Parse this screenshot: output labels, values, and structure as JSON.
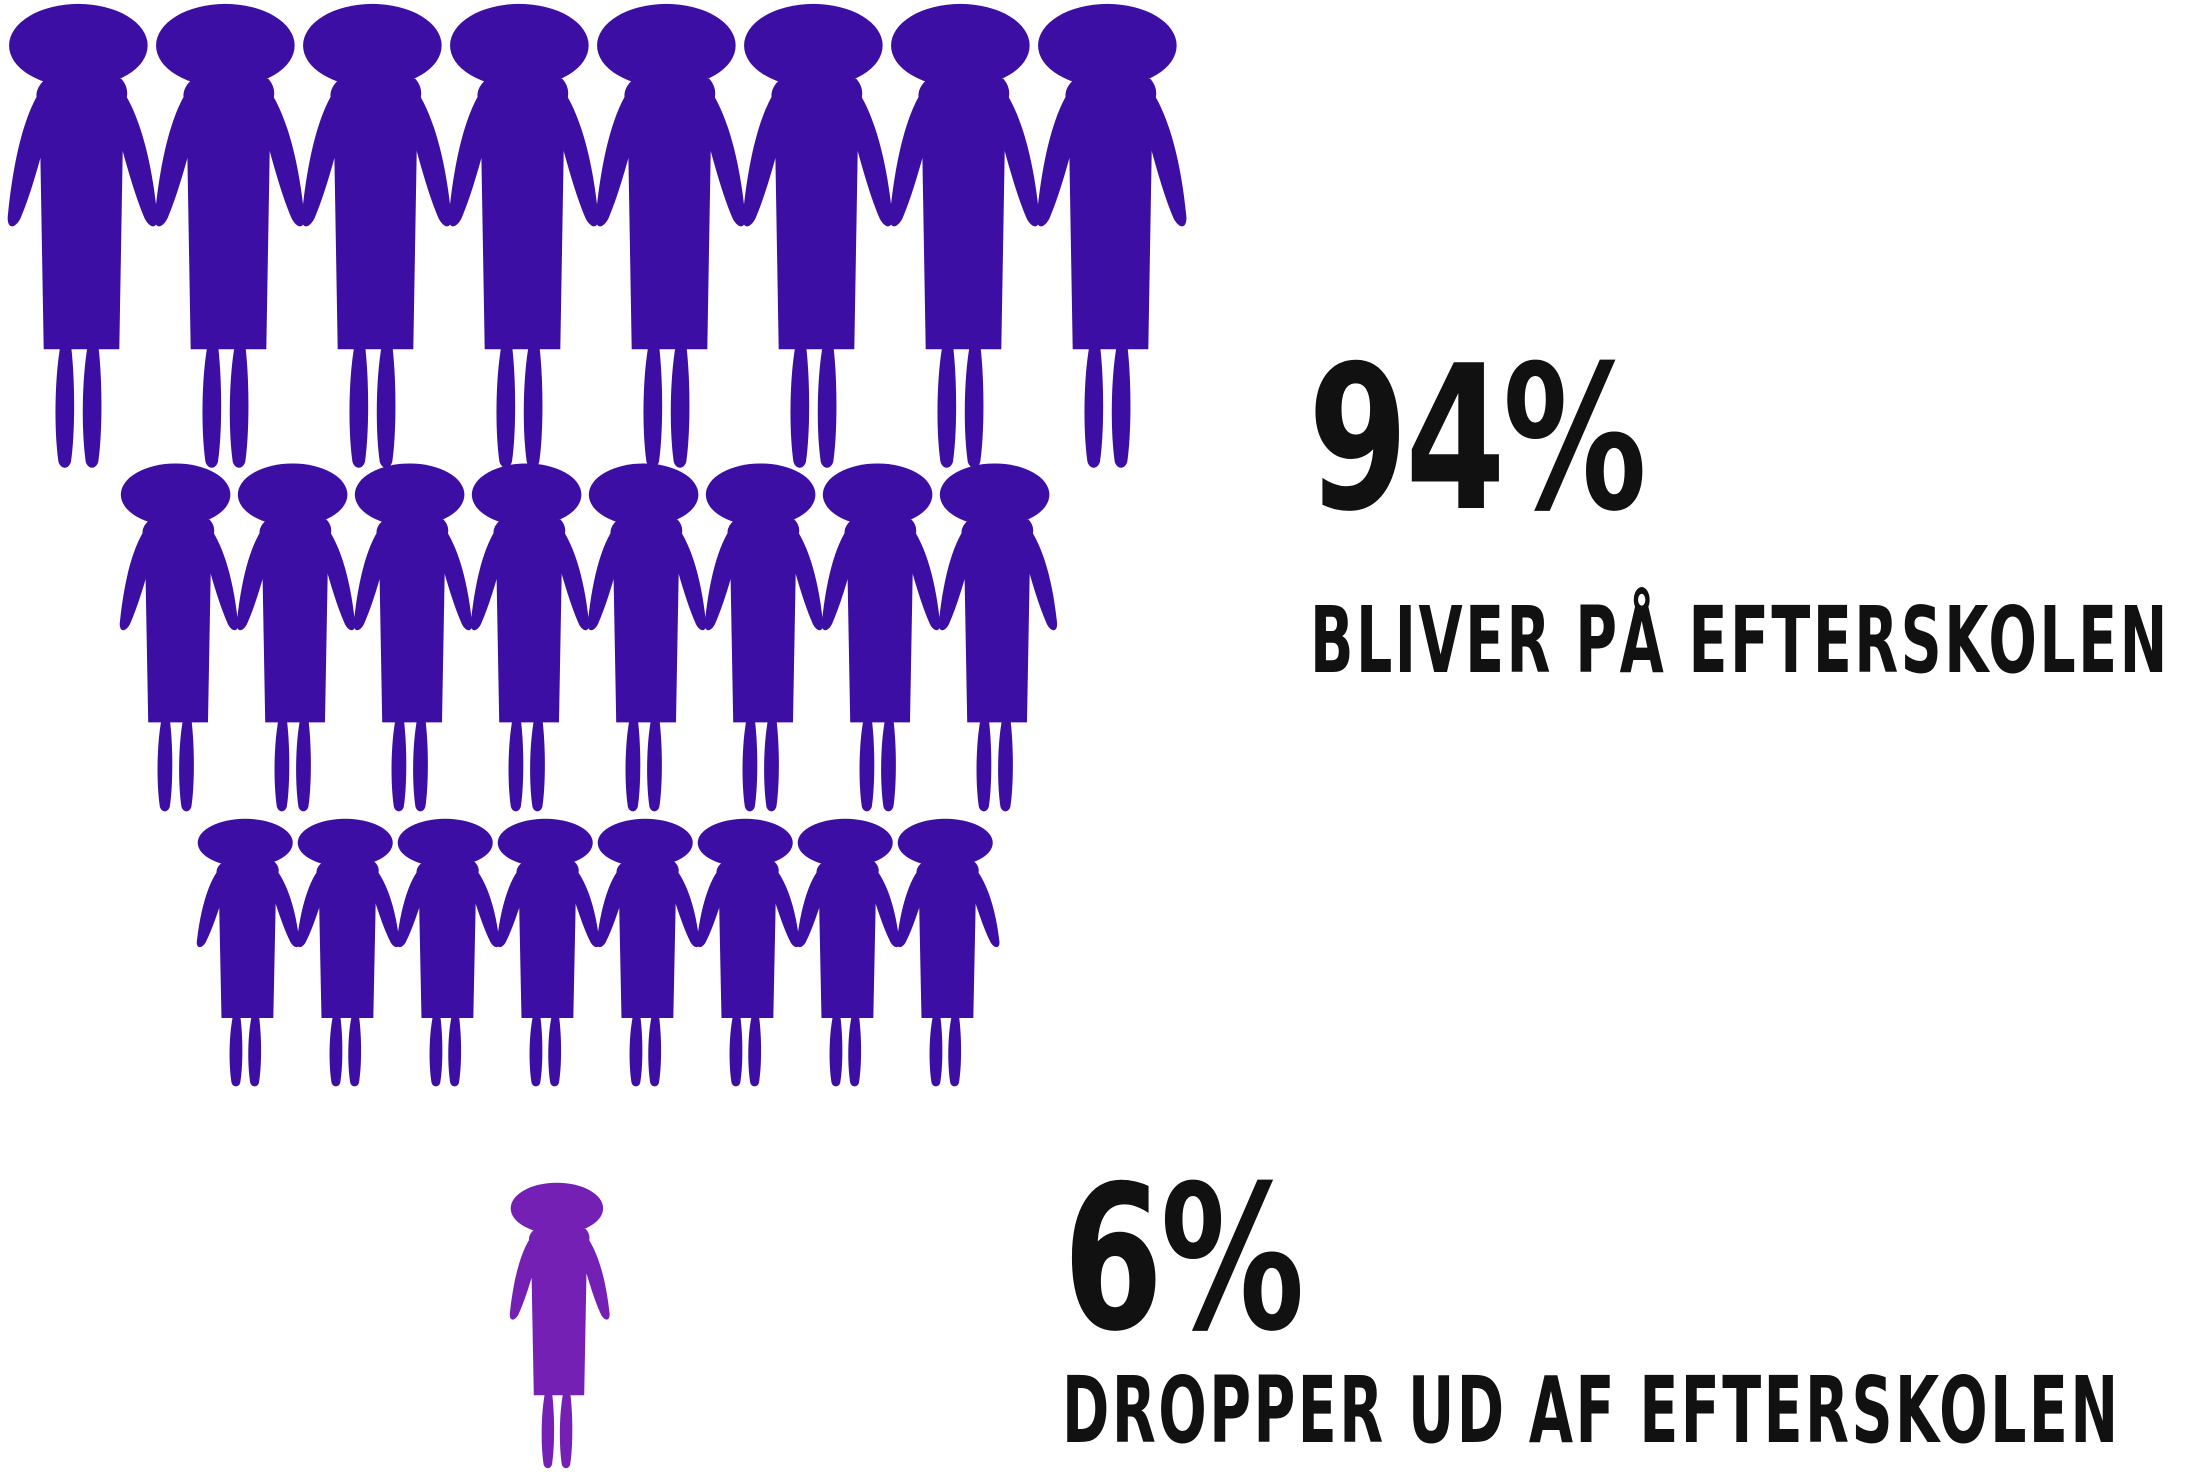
{
  "colors": {
    "stay_figure": "#3c0ea3",
    "dropout_figure": "#7420b4",
    "text": "#111111"
  },
  "stay": {
    "percent": "94%",
    "label": "BLIVER PÅ EFTERSKOLEN",
    "figure_count": 24
  },
  "dropout": {
    "percent": "6%",
    "label": "DROPPER UD AF EFTERSKOLEN",
    "figure_count": 1
  },
  "icon": "person-icon"
}
